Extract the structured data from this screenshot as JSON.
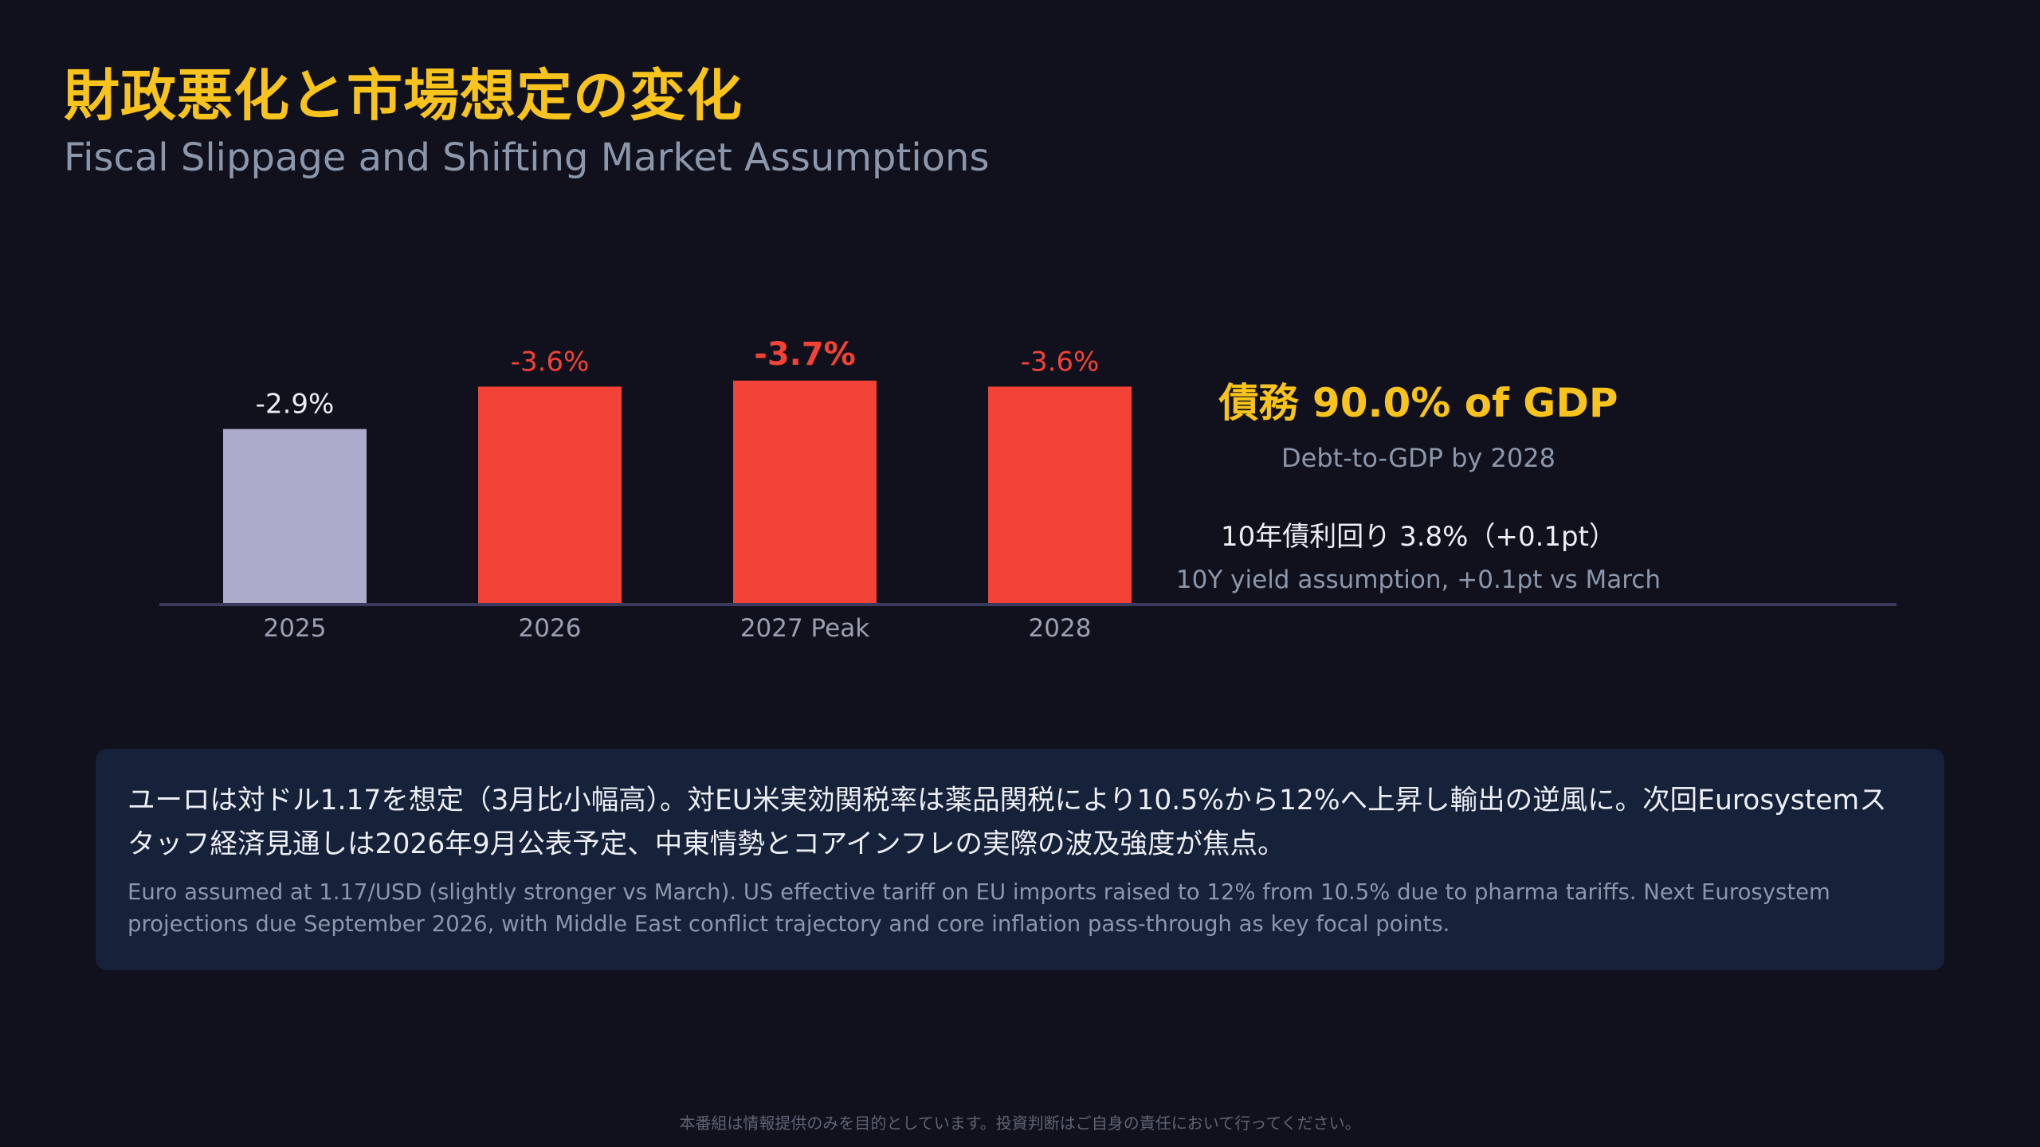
{
  "title": "財政悪化と市場想定の変化",
  "subtitle": "Fiscal Slippage and Shifting Market Assumptions",
  "chart_data": {
    "type": "bar",
    "categories": [
      "2025",
      "2026",
      "2027 Peak",
      "2028"
    ],
    "values": [
      -2.9,
      -3.6,
      -3.7,
      -3.6
    ],
    "value_labels": [
      "-2.9%",
      "-3.6%",
      "-3.7%",
      "-3.6%"
    ],
    "highlight_index": 2,
    "colors": [
      "#acabcb",
      "#f34237",
      "#f34237",
      "#f34237"
    ],
    "label_colors": [
      "#eceef4",
      "#f34237",
      "#f34237",
      "#f34237"
    ],
    "baseline_color": "#393a5c",
    "axis_label_color": "#9aa0b2",
    "title": "",
    "xlabel": "",
    "ylabel": "",
    "grid": false,
    "legend": "none"
  },
  "stats": {
    "debt_headline": "債務 90.0% of GDP",
    "debt_caption": "Debt-to-GDP by 2028",
    "yield_headline": "10年債利回り 3.8%（+0.1pt）",
    "yield_caption": "10Y yield assumption, +0.1pt vs March"
  },
  "summary": {
    "jp": "ユーロは対ドル1.17を想定（3月比小幅高）。対EU米実効関税率は薬品関税により10.5%から12%へ上昇し輸出の逆風に。次回Eurosystemスタッフ経済見通しは2026年9月公表予定、中東情勢とコアインフレの実際の波及強度が焦点。",
    "en": "Euro assumed at 1.17/USD (slightly stronger vs March). US effective tariff on EU imports raised to 12% from 10.5% due to pharma tariffs. Next Eurosystem projections due September 2026, with Middle East conflict trajectory and core inflation pass-through as key focal points."
  },
  "disclaimer": "本番組は情報提供のみを目的としています。投資判断はご自身の責任において行ってください。"
}
